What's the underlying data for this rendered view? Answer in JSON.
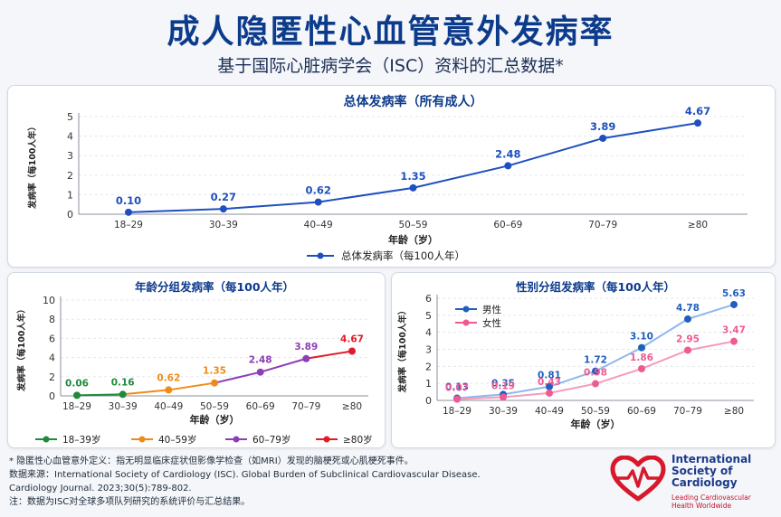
{
  "header": {
    "title": "成人隐匿性心血管意外发病率",
    "subtitle": "基于国际心脏病学会（ISC）资料的汇总数据*"
  },
  "chart_data": [
    {
      "type": "line",
      "title": "总体发病率（所有成人）",
      "xlabel": "年龄（岁）",
      "ylabel": "发病率（每100人年）",
      "categories": [
        "18–29",
        "30–39",
        "40–49",
        "50–59",
        "60–69",
        "70–79",
        "≥80"
      ],
      "yticks": [
        0,
        1,
        2,
        3,
        4,
        5
      ],
      "ylim": [
        0,
        5
      ],
      "grid": true,
      "legend_position": "bottom",
      "series": [
        {
          "name": "总体发病率（每100人年）",
          "color": "#1f4fbf",
          "values": [
            0.1,
            0.27,
            0.62,
            1.35,
            2.48,
            3.89,
            4.67
          ],
          "labels": [
            "0.10",
            "0.27",
            "0.62",
            "1.35",
            "2.48",
            "3.89",
            "4.67"
          ]
        }
      ]
    },
    {
      "type": "line",
      "title": "年龄分组发病率（每100人年）",
      "xlabel": "年龄（岁）",
      "ylabel": "发病率（每100人年）",
      "categories": [
        "18–29",
        "30–39",
        "40–49",
        "50–59",
        "60–69",
        "70–79",
        "≥80"
      ],
      "yticks": [
        0,
        2,
        4,
        6,
        8,
        10
      ],
      "ylim": [
        0,
        10
      ],
      "grid": true,
      "legend_position": "bottom",
      "values": [
        0.06,
        0.16,
        0.62,
        1.35,
        2.48,
        3.89,
        4.67
      ],
      "labels": [
        "0.06",
        "0.16",
        "0.62",
        "1.35",
        "2.48",
        "3.89",
        "4.67"
      ],
      "point_colors": [
        "#1f8a3a",
        "#1f8a3a",
        "#f08a17",
        "#f08a17",
        "#8e3db8",
        "#8e3db8",
        "#e01c2c"
      ],
      "groups": [
        {
          "name": "18–39岁",
          "color": "#1f8a3a",
          "range": [
            0,
            1
          ]
        },
        {
          "name": "40–59岁",
          "color": "#f08a17",
          "range": [
            1,
            3
          ]
        },
        {
          "name": "60–79岁",
          "color": "#8e3db8",
          "range": [
            3,
            5
          ]
        },
        {
          "name": "≥80岁",
          "color": "#e01c2c",
          "range": [
            5,
            6
          ]
        }
      ]
    },
    {
      "type": "line",
      "title": "性别分组发病率（每100人年）",
      "xlabel": "年龄（岁）",
      "ylabel": "发病率（每100人年）",
      "categories": [
        "18–29",
        "30–39",
        "40–49",
        "50–59",
        "60–69",
        "70–79",
        "≥80"
      ],
      "yticks": [
        0,
        1,
        2,
        3,
        4,
        5,
        6
      ],
      "ylim": [
        0,
        6
      ],
      "grid": true,
      "legend_position": "top-left",
      "series": [
        {
          "name": "男性",
          "color": "#1f5fbf",
          "line_color": "#8fb8ec",
          "values": [
            0.13,
            0.35,
            0.81,
            1.72,
            3.1,
            4.78,
            5.63
          ],
          "labels": [
            "0.13",
            "0.35",
            "0.81",
            "1.72",
            "3.10",
            "4.78",
            "5.63"
          ]
        },
        {
          "name": "女性",
          "color": "#ef5a93",
          "line_color": "#f59bbe",
          "values": [
            0.07,
            0.19,
            0.43,
            0.98,
            1.86,
            2.95,
            3.47
          ],
          "labels": [
            "0.07",
            "0.19",
            "0.43",
            "0.98",
            "1.86",
            "2.95",
            "3.47"
          ]
        }
      ]
    }
  ],
  "footnotes": [
    "* 隐匿性心血管意外定义：指无明显临床症状但影像学检查（如MRI）发现的脑梗死或心肌梗死事件。",
    "数据来源：International Society of Cardiology (ISC). Global Burden of Subclinical Cardiovascular Disease.",
    "Cardiology Journal. 2023;30(5):789-802.",
    "注：数据为ISC对全球多项队列研究的系统评价与汇总结果。"
  ],
  "logo": {
    "name_lines": [
      "International",
      "Society of",
      "Cardiology"
    ],
    "tagline_lines": [
      "Leading Cardiovascular",
      "Health Worldwide"
    ],
    "colors": {
      "heart": "#d7192c",
      "text": "#1b3a8a"
    }
  }
}
